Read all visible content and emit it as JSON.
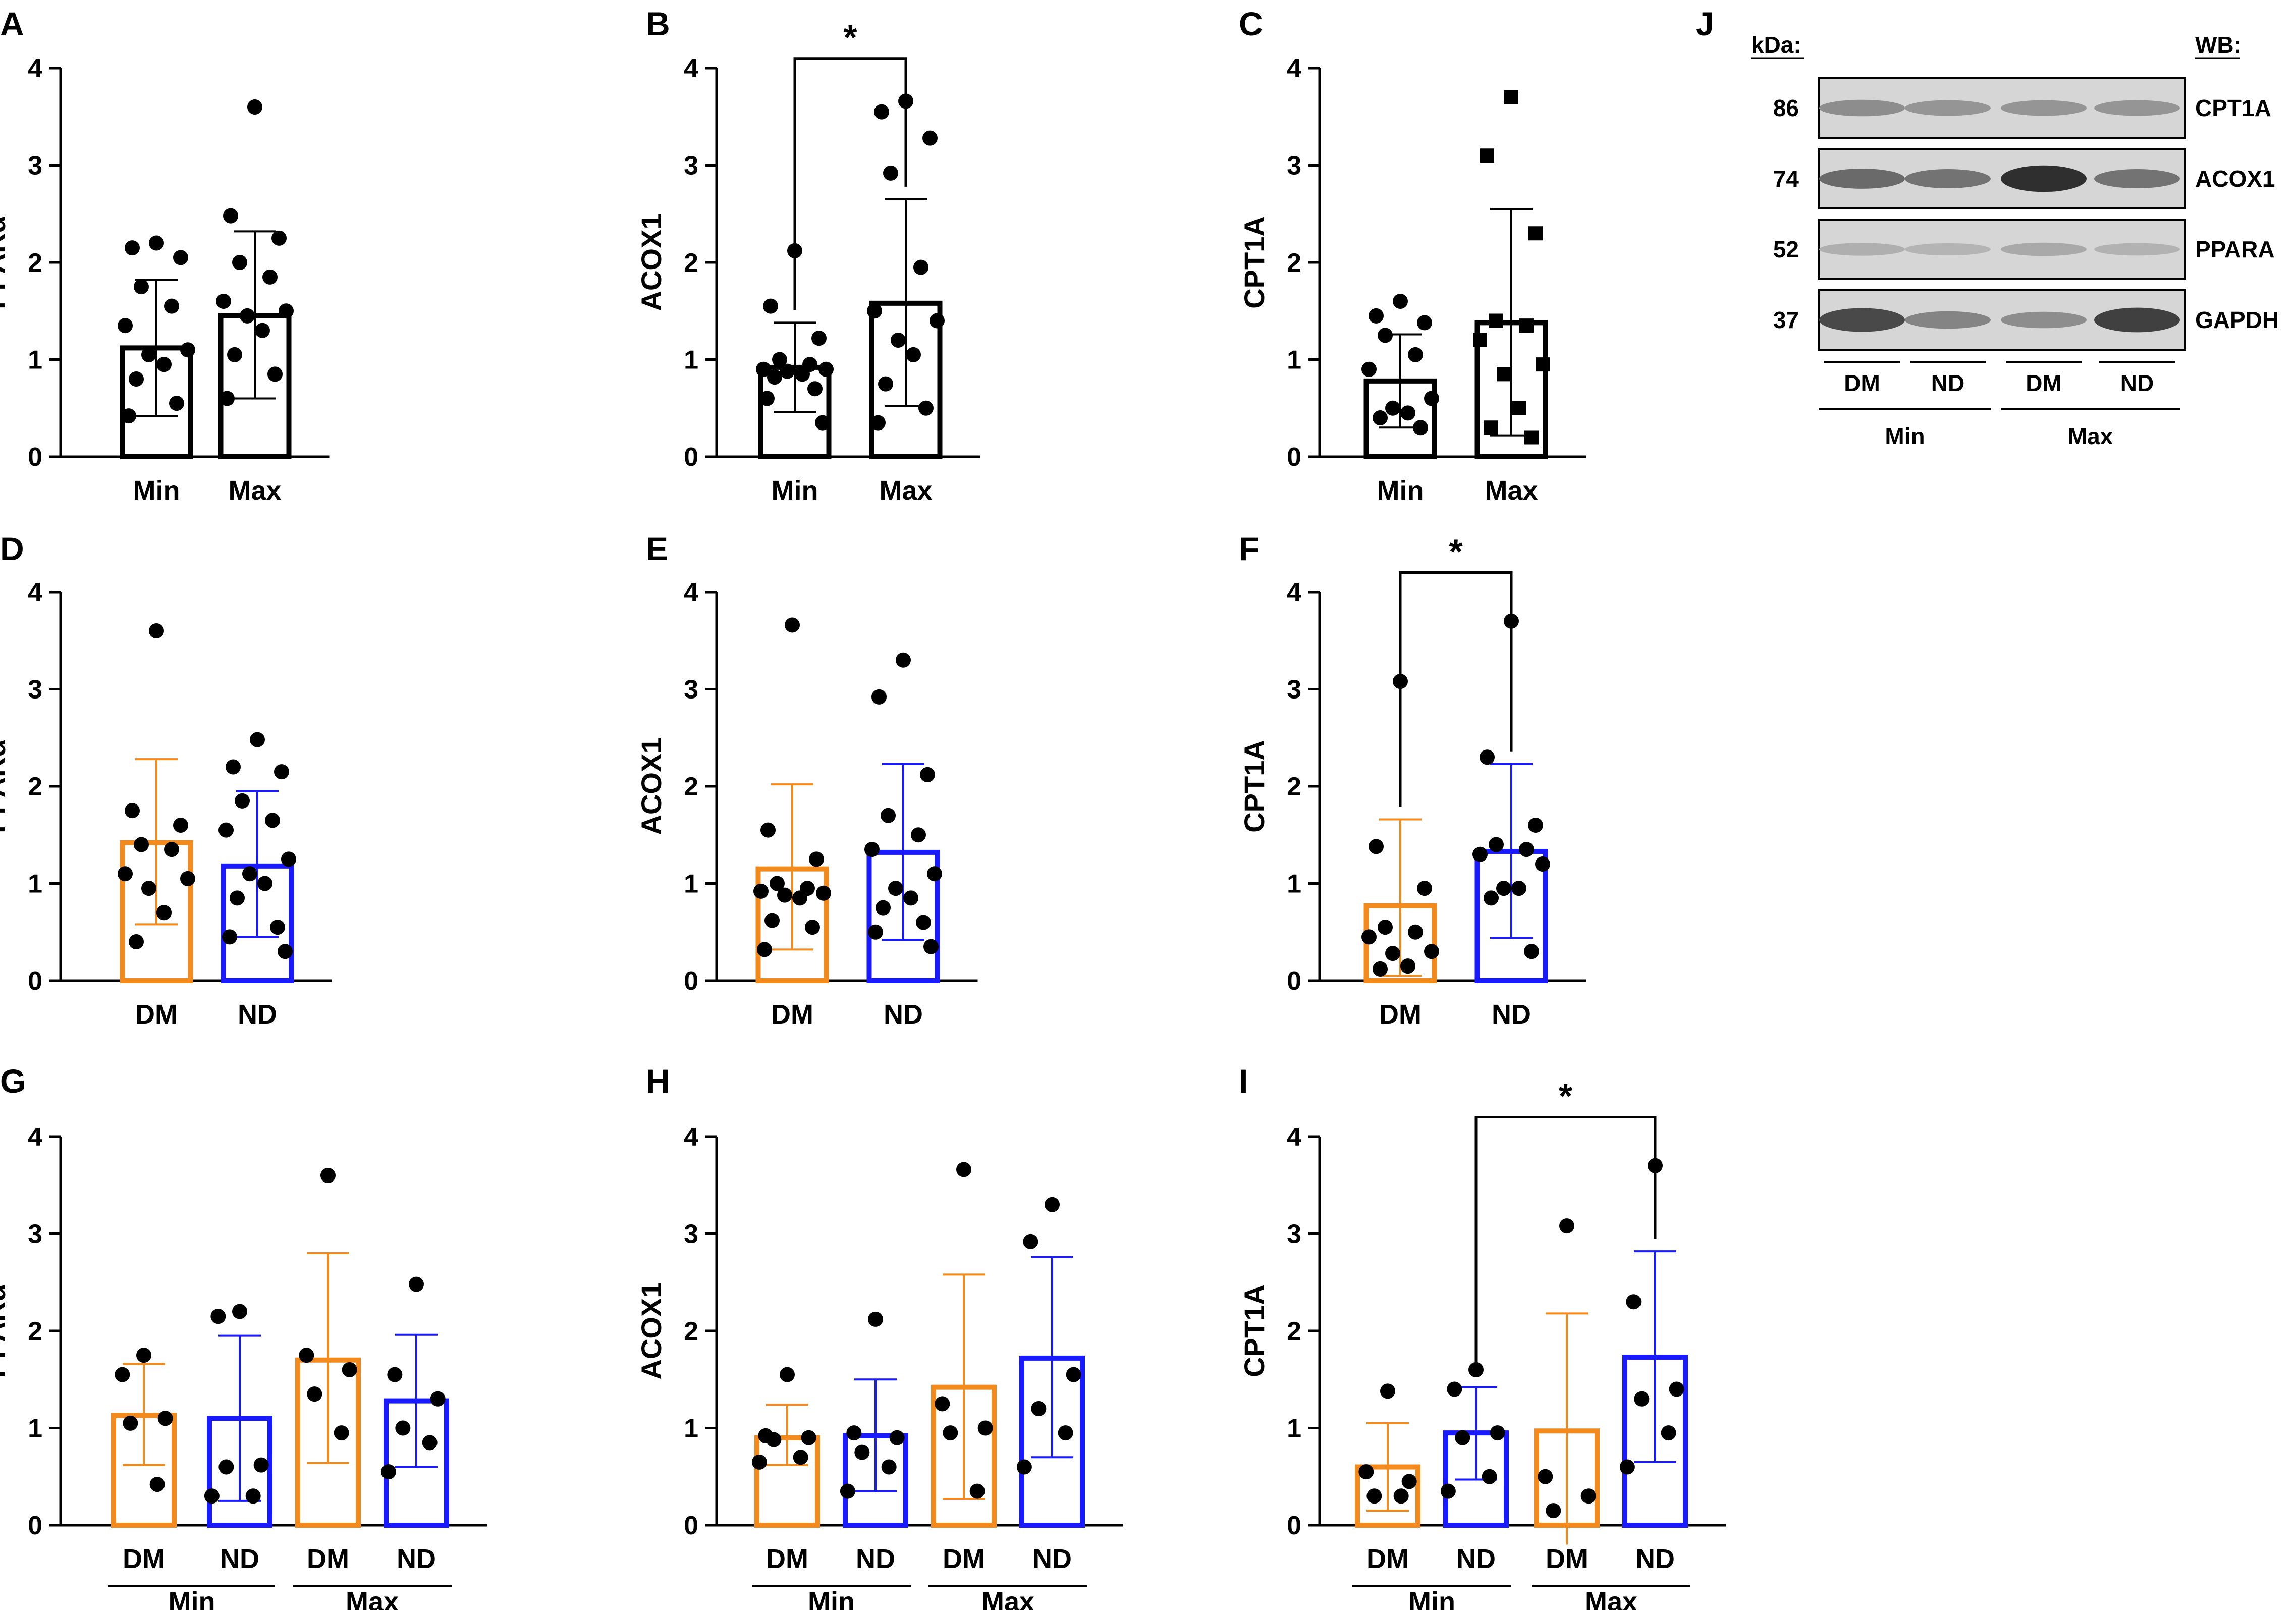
{
  "colors": {
    "black": "#000000",
    "orange": "#f28a1e",
    "blue": "#1a1aff"
  },
  "chart_data": [
    {
      "panel": "A",
      "type": "bar",
      "ylabel": "PPARα",
      "ylim": [
        0,
        4
      ],
      "yticks": [
        "0",
        "1",
        "2",
        "3",
        "4"
      ],
      "categories": [
        "Min",
        "Max"
      ],
      "group_labels": [],
      "bars": [
        {
          "label": "Min",
          "value": 1.12,
          "err_low": 0.42,
          "err_high": 1.82,
          "color": "black",
          "marker": "circle",
          "points": [
            2.2,
            2.15,
            2.05,
            1.75,
            1.55,
            1.35,
            1.1,
            1.05,
            0.95,
            0.8,
            0.55,
            0.42
          ]
        },
        {
          "label": "Max",
          "value": 1.45,
          "err_low": 0.6,
          "err_high": 2.32,
          "color": "black",
          "marker": "circle",
          "points": [
            3.6,
            2.48,
            2.25,
            2.0,
            1.85,
            1.6,
            1.5,
            1.45,
            1.3,
            1.05,
            0.85,
            0.6
          ]
        }
      ],
      "significance": []
    },
    {
      "panel": "B",
      "type": "bar",
      "ylabel": "ACOX1",
      "ylim": [
        0,
        4
      ],
      "yticks": [
        "0",
        "1",
        "2",
        "3",
        "4"
      ],
      "categories": [
        "Min",
        "Max"
      ],
      "group_labels": [],
      "bars": [
        {
          "label": "Min",
          "value": 0.92,
          "err_low": 0.46,
          "err_high": 1.38,
          "color": "black",
          "marker": "circle",
          "points": [
            2.12,
            1.55,
            1.22,
            1.0,
            0.95,
            0.9,
            0.9,
            0.88,
            0.85,
            0.82,
            0.7,
            0.6,
            0.35
          ]
        },
        {
          "label": "Max",
          "value": 1.58,
          "err_low": 0.52,
          "err_high": 2.65,
          "color": "black",
          "marker": "circle",
          "points": [
            3.66,
            3.55,
            3.28,
            2.92,
            1.95,
            1.5,
            1.4,
            1.2,
            1.05,
            0.75,
            0.5,
            0.35
          ]
        }
      ],
      "significance": [
        {
          "from": 0,
          "to": 1,
          "label": "*",
          "level": 4.1
        }
      ]
    },
    {
      "panel": "C",
      "type": "bar",
      "ylabel": "CPT1A",
      "ylim": [
        0,
        4
      ],
      "yticks": [
        "0",
        "1",
        "2",
        "3",
        "4"
      ],
      "categories": [
        "Min",
        "Max"
      ],
      "group_labels": [],
      "bars": [
        {
          "label": "Min",
          "value": 0.78,
          "err_low": 0.3,
          "err_high": 1.26,
          "color": "black",
          "marker": "circle",
          "points": [
            1.6,
            1.45,
            1.38,
            1.25,
            1.05,
            0.9,
            0.6,
            0.5,
            0.45,
            0.4,
            0.3
          ]
        },
        {
          "label": "Max",
          "value": 1.38,
          "err_low": 0.22,
          "err_high": 2.55,
          "color": "black",
          "marker": "square",
          "points": [
            3.7,
            3.1,
            2.3,
            1.4,
            1.35,
            1.2,
            0.95,
            0.85,
            0.5,
            0.3,
            0.2
          ]
        }
      ],
      "significance": []
    },
    {
      "panel": "D",
      "type": "bar",
      "ylabel": "PPARα",
      "ylim": [
        0,
        4
      ],
      "yticks": [
        "0",
        "1",
        "2",
        "3",
        "4"
      ],
      "categories": [
        "DM",
        "ND"
      ],
      "group_labels": [],
      "bars": [
        {
          "label": "DM",
          "value": 1.42,
          "err_low": 0.58,
          "err_high": 2.28,
          "color": "orange",
          "marker": "circle",
          "points": [
            3.6,
            1.75,
            1.6,
            1.4,
            1.35,
            1.1,
            1.05,
            0.95,
            0.7,
            0.4
          ]
        },
        {
          "label": "ND",
          "value": 1.18,
          "err_low": 0.45,
          "err_high": 1.95,
          "color": "blue",
          "marker": "circle",
          "points": [
            2.48,
            2.2,
            2.15,
            1.85,
            1.65,
            1.55,
            1.25,
            1.1,
            1.0,
            0.85,
            0.55,
            0.45,
            0.3
          ]
        }
      ],
      "significance": []
    },
    {
      "panel": "E",
      "type": "bar",
      "ylabel": "ACOX1",
      "ylim": [
        0,
        4
      ],
      "yticks": [
        "0",
        "1",
        "2",
        "3",
        "4"
      ],
      "categories": [
        "DM",
        "ND"
      ],
      "group_labels": [],
      "bars": [
        {
          "label": "DM",
          "value": 1.15,
          "err_low": 0.32,
          "err_high": 2.02,
          "color": "orange",
          "marker": "circle",
          "points": [
            3.66,
            1.55,
            1.25,
            1.0,
            0.95,
            0.92,
            0.9,
            0.88,
            0.85,
            0.62,
            0.55,
            0.32
          ]
        },
        {
          "label": "ND",
          "value": 1.32,
          "err_low": 0.42,
          "err_high": 2.23,
          "color": "blue",
          "marker": "circle",
          "points": [
            3.3,
            2.92,
            2.12,
            1.7,
            1.5,
            1.35,
            1.1,
            0.95,
            0.85,
            0.75,
            0.6,
            0.5,
            0.35
          ]
        }
      ],
      "significance": []
    },
    {
      "panel": "F",
      "type": "bar",
      "ylabel": "CPT1A",
      "ylim": [
        0,
        4
      ],
      "yticks": [
        "0",
        "1",
        "2",
        "3",
        "4"
      ],
      "categories": [
        "DM",
        "ND"
      ],
      "group_labels": [],
      "bars": [
        {
          "label": "DM",
          "value": 0.77,
          "err_low": 0.05,
          "err_high": 1.66,
          "color": "orange",
          "marker": "circle",
          "points": [
            3.08,
            1.38,
            0.95,
            0.55,
            0.5,
            0.45,
            0.3,
            0.28,
            0.15,
            0.12
          ]
        },
        {
          "label": "ND",
          "value": 1.33,
          "err_low": 0.44,
          "err_high": 2.23,
          "color": "blue",
          "marker": "circle",
          "points": [
            3.7,
            2.3,
            1.6,
            1.4,
            1.35,
            1.3,
            1.2,
            0.95,
            0.95,
            0.85,
            0.3
          ]
        }
      ],
      "significance": [
        {
          "from": 0,
          "to": 1,
          "label": "*",
          "level": 4.2
        }
      ]
    },
    {
      "panel": "G",
      "type": "bar",
      "ylabel": "PPARα",
      "ylim": [
        0,
        4
      ],
      "yticks": [
        "0",
        "1",
        "2",
        "3",
        "4"
      ],
      "categories": [
        "DM",
        "ND",
        "DM",
        "ND"
      ],
      "group_labels": [
        "Min",
        "Max"
      ],
      "bars": [
        {
          "label": "DM",
          "value": 1.13,
          "err_low": 0.62,
          "err_high": 1.66,
          "color": "orange",
          "marker": "circle",
          "points": [
            1.75,
            1.55,
            1.1,
            1.05,
            0.42
          ]
        },
        {
          "label": "ND",
          "value": 1.1,
          "err_low": 0.25,
          "err_high": 1.95,
          "color": "blue",
          "marker": "circle",
          "points": [
            2.2,
            2.15,
            0.62,
            0.6,
            0.3,
            0.3
          ]
        },
        {
          "label": "DM",
          "value": 1.7,
          "err_low": 0.64,
          "err_high": 2.8,
          "color": "orange",
          "marker": "circle",
          "points": [
            3.6,
            1.75,
            1.6,
            1.35,
            0.95
          ]
        },
        {
          "label": "ND",
          "value": 1.28,
          "err_low": 0.6,
          "err_high": 1.96,
          "color": "blue",
          "marker": "circle",
          "points": [
            2.48,
            1.55,
            1.3,
            1.0,
            0.85,
            0.55
          ]
        }
      ],
      "significance": []
    },
    {
      "panel": "H",
      "type": "bar",
      "ylabel": "ACOX1",
      "ylim": [
        0,
        4
      ],
      "yticks": [
        "0",
        "1",
        "2",
        "3",
        "4"
      ],
      "categories": [
        "DM",
        "ND",
        "DM",
        "ND"
      ],
      "group_labels": [
        "Min",
        "Max"
      ],
      "bars": [
        {
          "label": "DM",
          "value": 0.9,
          "err_low": 0.62,
          "err_high": 1.24,
          "color": "orange",
          "marker": "circle",
          "points": [
            1.55,
            0.92,
            0.9,
            0.88,
            0.7,
            0.65
          ]
        },
        {
          "label": "ND",
          "value": 0.92,
          "err_low": 0.35,
          "err_high": 1.5,
          "color": "blue",
          "marker": "circle",
          "points": [
            2.12,
            0.95,
            0.9,
            0.75,
            0.6,
            0.35
          ]
        },
        {
          "label": "DM",
          "value": 1.42,
          "err_low": 0.27,
          "err_high": 2.58,
          "color": "orange",
          "marker": "circle",
          "points": [
            3.66,
            1.25,
            1.0,
            0.95,
            0.35
          ]
        },
        {
          "label": "ND",
          "value": 1.72,
          "err_low": 0.7,
          "err_high": 2.76,
          "color": "blue",
          "marker": "circle",
          "points": [
            3.3,
            2.92,
            1.55,
            1.2,
            0.95,
            0.6
          ]
        }
      ],
      "significance": []
    },
    {
      "panel": "I",
      "type": "bar",
      "ylabel": "CPT1A",
      "ylim": [
        0,
        4
      ],
      "yticks": [
        "0",
        "1",
        "2",
        "3",
        "4"
      ],
      "categories": [
        "DM",
        "ND",
        "DM",
        "ND"
      ],
      "group_labels": [
        "Min",
        "Max"
      ],
      "bars": [
        {
          "label": "DM",
          "value": 0.6,
          "err_low": 0.15,
          "err_high": 1.05,
          "color": "orange",
          "marker": "circle",
          "points": [
            1.38,
            0.55,
            0.45,
            0.3,
            0.3
          ]
        },
        {
          "label": "ND",
          "value": 0.95,
          "err_low": 0.47,
          "err_high": 1.42,
          "color": "blue",
          "marker": "circle",
          "points": [
            1.6,
            1.4,
            0.95,
            0.9,
            0.5,
            0.35
          ]
        },
        {
          "label": "DM",
          "value": 0.97,
          "err_low": -0.2,
          "err_high": 2.18,
          "color": "orange",
          "marker": "circle",
          "points": [
            3.08,
            0.5,
            0.3,
            0.15
          ]
        },
        {
          "label": "ND",
          "value": 1.73,
          "err_low": 0.65,
          "err_high": 2.82,
          "color": "blue",
          "marker": "circle",
          "points": [
            3.7,
            2.3,
            1.4,
            1.3,
            0.95,
            0.6
          ]
        }
      ],
      "significance": [
        {
          "from": 1,
          "to": 3,
          "label": "*",
          "level": 4.2
        }
      ]
    }
  ],
  "blot": {
    "panel": "J",
    "kda_header": "kDa:",
    "wb_header": "WB:",
    "rows": [
      {
        "kda": "86",
        "protein": "CPT1A",
        "intensities": [
          0.35,
          0.3,
          0.3,
          0.3
        ]
      },
      {
        "kda": "74",
        "protein": "ACOX1",
        "intensities": [
          0.55,
          0.5,
          0.9,
          0.5
        ]
      },
      {
        "kda": "52",
        "protein": "PPARA",
        "intensities": [
          0.15,
          0.12,
          0.18,
          0.13
        ]
      },
      {
        "kda": "37",
        "protein": "GAPDH",
        "intensities": [
          0.75,
          0.4,
          0.35,
          0.8
        ]
      }
    ],
    "lane_labels": [
      "DM",
      "ND",
      "DM",
      "ND"
    ],
    "group_labels": [
      "Min",
      "Max"
    ]
  }
}
